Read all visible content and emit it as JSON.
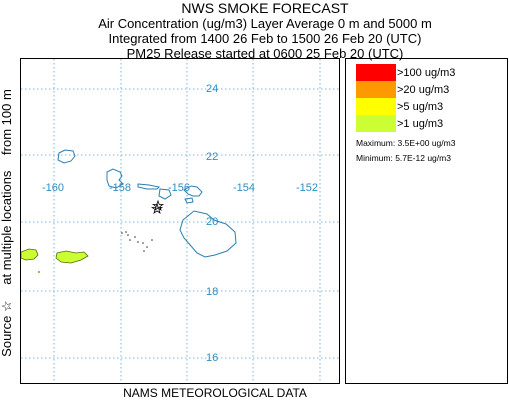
{
  "header": {
    "title": "NWS SMOKE FORECAST",
    "line2": "Air Concentration (ug/m3) Layer Average    0 m and  5000 m",
    "line3": "Integrated from 1400 26 Feb to 1500 26 Feb 20 (UTC)",
    "line4": "PM25 Release started at 0600 25 Feb 20 (UTC)"
  },
  "side_label": {
    "part1": "Source ☆",
    "part2": "at multiple locations",
    "part3": "from   100 m"
  },
  "footer": "NAMS METEOROLOGICAL DATA",
  "map": {
    "lat_labels": [
      "24",
      "22",
      "20",
      "18",
      "16"
    ],
    "lon_labels": [
      "-160",
      "-158",
      "-156",
      "-154",
      "-152"
    ],
    "gridline_color": "#5aa0d0",
    "coast_color": "#2a7fb0",
    "source_marker": "star-icon"
  },
  "legend": {
    "items": [
      {
        "label": ">100 ug/m3",
        "color": "#ff0000"
      },
      {
        "label": ">20 ug/m3",
        "color": "#ff9900"
      },
      {
        "label": ">5 ug/m3",
        "color": "#ffff00"
      },
      {
        "label": ">1 ug/m3",
        "color": "#ccff33"
      }
    ],
    "maximum": "Maximum:  3.5E+00 ug/m3",
    "minimum": "Minimum:  5.7E-12 ug/m3"
  }
}
